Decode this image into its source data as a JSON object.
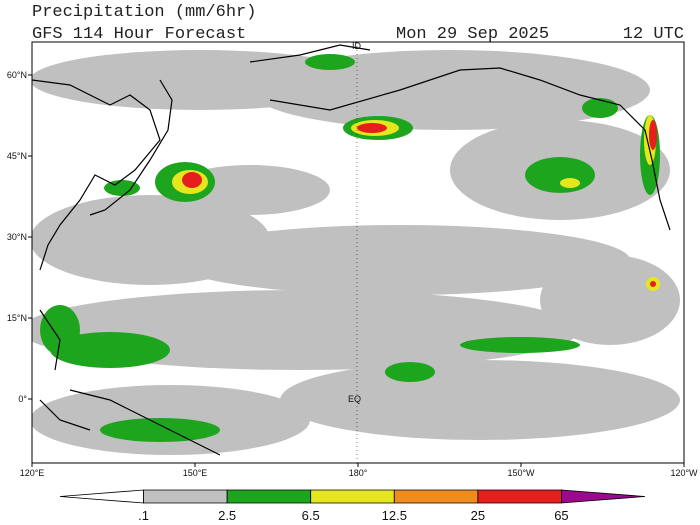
{
  "header": {
    "title": "Precipitation (mm/6hr)",
    "subtitle": "GFS 114 Hour Forecast",
    "date": "Mon 29 Sep 2025",
    "time": "12 UTC"
  },
  "map": {
    "lat_labels": [
      "60°N",
      "45°N",
      "30°N",
      "15°N",
      "0°"
    ],
    "lon_labels": [
      "120°E",
      "150°E",
      "180°",
      "150°W",
      "120°W"
    ],
    "annotations": [
      "ID",
      "EQ"
    ]
  },
  "colorbar": {
    "labels": [
      ".1",
      "2.5",
      "6.5",
      "12.5",
      "25",
      "65"
    ],
    "colors": [
      "#ffffff",
      "#c0c0c0",
      "#1ea51e",
      "#e6e61e",
      "#f08c1e",
      "#e61e1e",
      "#9b0a8c"
    ]
  }
}
